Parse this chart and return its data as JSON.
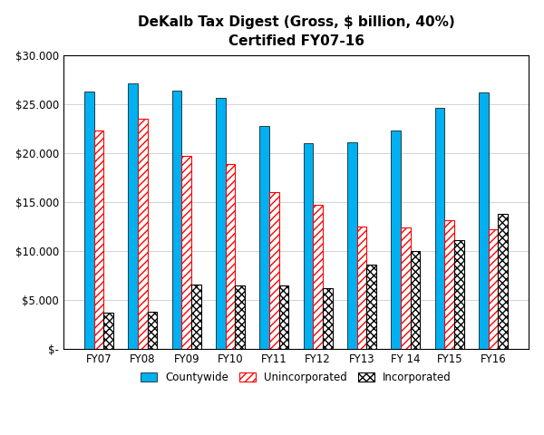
{
  "title": "DeKalb Tax Digest (Gross, $ billion, 40%)\nCertified FY07-16",
  "categories": [
    "FY07",
    "FY08",
    "FY09",
    "FY10",
    "FY11",
    "FY12",
    "FY13",
    "FY 14",
    "FY15",
    "FY16"
  ],
  "countywide": [
    26300,
    27100,
    26400,
    25600,
    22800,
    21000,
    21100,
    22300,
    24600,
    26200
  ],
  "unincorporated": [
    22300,
    23500,
    19700,
    18900,
    16000,
    14700,
    12500,
    12400,
    13100,
    12200
  ],
  "incorporated": [
    3700,
    3800,
    6600,
    6500,
    6500,
    6200,
    8600,
    10000,
    11100,
    13800
  ],
  "ylim": [
    0,
    30000
  ],
  "yticks": [
    0,
    5000,
    10000,
    15000,
    20000,
    25000,
    30000
  ],
  "bar_color_countywide": "#00B0F0",
  "background_color": "#FFFFFF",
  "title_fontsize": 11,
  "legend_labels": [
    "Countywide",
    "Unincorporated",
    "Incorporated"
  ],
  "bar_width": 0.22,
  "figsize": [
    6.0,
    4.8
  ],
  "dpi": 100
}
